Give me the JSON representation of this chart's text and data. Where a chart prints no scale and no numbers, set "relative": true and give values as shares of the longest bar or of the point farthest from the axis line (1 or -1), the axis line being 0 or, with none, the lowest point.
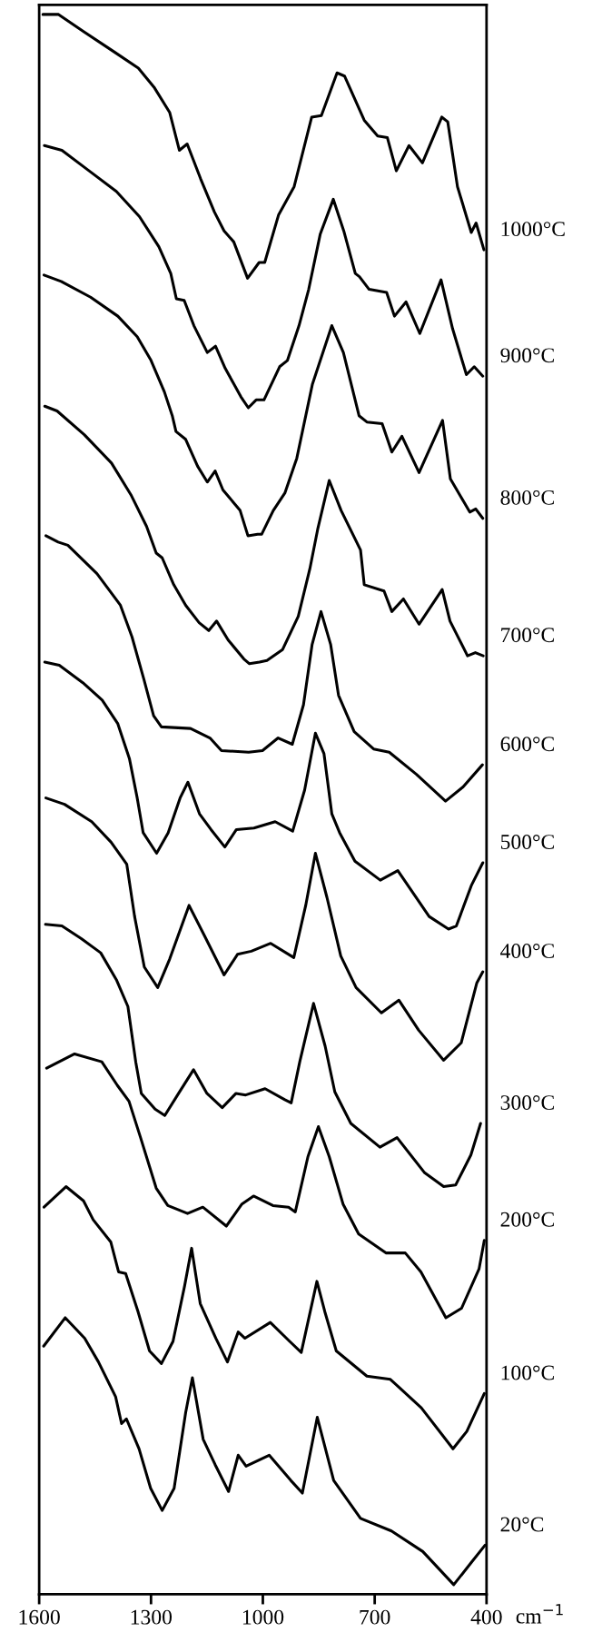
{
  "chart_data": {
    "type": "line",
    "relative": true,
    "xlabel": "cm$^{−1}$",
    "xlim": [
      1600,
      400
    ],
    "xticks": [
      1600,
      1300,
      1000,
      700,
      400
    ],
    "tick_labels": "x",
    "grid": false,
    "legend": false,
    "marker": "none",
    "line_style": "solid",
    "series": [
      {
        "name": "1000°C",
        "color": "#000000",
        "x": [
          1590,
          1548,
          1480,
          1397,
          1334,
          1292,
          1250,
          1224,
          1203,
          1167,
          1130,
          1104,
          1078,
          1041,
          1010,
          995,
          958,
          916,
          869,
          843,
          801,
          781,
          728,
          692,
          666,
          642,
          608,
          572,
          520,
          504,
          478,
          441,
          428,
          407
        ],
        "values": [
          1.0,
          1.0,
          0.989,
          0.976,
          0.966,
          0.954,
          0.938,
          0.914,
          0.918,
          0.896,
          0.875,
          0.863,
          0.856,
          0.833,
          0.843,
          0.843,
          0.873,
          0.891,
          0.935,
          0.936,
          0.963,
          0.961,
          0.933,
          0.923,
          0.922,
          0.901,
          0.917,
          0.906,
          0.935,
          0.932,
          0.891,
          0.862,
          0.868,
          0.851
        ]
      },
      {
        "name": "900°C",
        "color": "#000000",
        "x": [
          1586,
          1539,
          1466,
          1393,
          1331,
          1279,
          1247,
          1232,
          1211,
          1185,
          1149,
          1127,
          1101,
          1059,
          1039,
          1018,
          997,
          955,
          934,
          903,
          877,
          846,
          811,
          783,
          752,
          741,
          715,
          668,
          647,
          616,
          579,
          522,
          491,
          454,
          433,
          410
        ],
        "values": [
          0.917,
          0.914,
          0.901,
          0.888,
          0.872,
          0.853,
          0.836,
          0.82,
          0.819,
          0.803,
          0.786,
          0.79,
          0.776,
          0.758,
          0.751,
          0.756,
          0.756,
          0.777,
          0.781,
          0.803,
          0.826,
          0.861,
          0.883,
          0.863,
          0.836,
          0.834,
          0.826,
          0.824,
          0.809,
          0.818,
          0.798,
          0.832,
          0.801,
          0.772,
          0.777,
          0.771
        ]
      },
      {
        "name": "800°C",
        "color": "#000000",
        "x": [
          1587,
          1541,
          1462,
          1389,
          1337,
          1300,
          1264,
          1243,
          1233,
          1207,
          1175,
          1149,
          1128,
          1107,
          1061,
          1040,
          1014,
          1003,
          972,
          941,
          909,
          867,
          815,
          784,
          742,
          721,
          680,
          654,
          627,
          581,
          518,
          497,
          445,
          429,
          410
        ],
        "values": [
          0.835,
          0.831,
          0.821,
          0.809,
          0.796,
          0.781,
          0.761,
          0.746,
          0.736,
          0.731,
          0.714,
          0.704,
          0.711,
          0.699,
          0.686,
          0.67,
          0.671,
          0.671,
          0.686,
          0.697,
          0.719,
          0.766,
          0.803,
          0.786,
          0.746,
          0.742,
          0.741,
          0.723,
          0.733,
          0.71,
          0.743,
          0.706,
          0.685,
          0.687,
          0.681
        ]
      },
      {
        "name": "700°C",
        "color": "#000000",
        "x": [
          1585,
          1552,
          1479,
          1406,
          1354,
          1312,
          1286,
          1270,
          1239,
          1207,
          1171,
          1145,
          1124,
          1093,
          1051,
          1036,
          1009,
          989,
          947,
          905,
          874,
          853,
          822,
          790,
          738,
          728,
          675,
          654,
          623,
          581,
          519,
          498,
          451,
          430,
          409
        ],
        "values": [
          0.752,
          0.749,
          0.734,
          0.716,
          0.696,
          0.676,
          0.659,
          0.656,
          0.639,
          0.626,
          0.615,
          0.61,
          0.616,
          0.604,
          0.592,
          0.589,
          0.59,
          0.591,
          0.598,
          0.619,
          0.649,
          0.674,
          0.705,
          0.686,
          0.661,
          0.639,
          0.635,
          0.622,
          0.63,
          0.614,
          0.636,
          0.616,
          0.594,
          0.596,
          0.594
        ]
      },
      {
        "name": "600°C",
        "color": "#000000",
        "x": [
          1582,
          1549,
          1523,
          1445,
          1382,
          1351,
          1319,
          1293,
          1272,
          1194,
          1142,
          1111,
          1038,
          1001,
          959,
          921,
          891,
          868,
          844,
          818,
          797,
          755,
          703,
          661,
          588,
          510,
          463,
          411
        ],
        "values": [
          0.67,
          0.666,
          0.664,
          0.646,
          0.626,
          0.606,
          0.579,
          0.556,
          0.549,
          0.548,
          0.542,
          0.534,
          0.533,
          0.534,
          0.542,
          0.538,
          0.563,
          0.601,
          0.622,
          0.601,
          0.569,
          0.546,
          0.535,
          0.533,
          0.519,
          0.502,
          0.511,
          0.525
        ]
      },
      {
        "name": "500°C",
        "color": "#000000",
        "x": [
          1585,
          1546,
          1483,
          1431,
          1389,
          1358,
          1337,
          1321,
          1285,
          1254,
          1222,
          1201,
          1170,
          1139,
          1102,
          1071,
          1024,
          967,
          920,
          888,
          859,
          836,
          815,
          794,
          753,
          685,
          638,
          554,
          502,
          481,
          440,
          410
        ],
        "values": [
          0.59,
          0.588,
          0.577,
          0.566,
          0.551,
          0.529,
          0.504,
          0.482,
          0.469,
          0.482,
          0.504,
          0.514,
          0.494,
          0.484,
          0.473,
          0.484,
          0.485,
          0.489,
          0.483,
          0.509,
          0.545,
          0.532,
          0.494,
          0.482,
          0.464,
          0.452,
          0.458,
          0.429,
          0.421,
          0.423,
          0.449,
          0.463
        ]
      },
      {
        "name": "400°C",
        "color": "#000000",
        "x": [
          1582,
          1532,
          1459,
          1407,
          1365,
          1344,
          1318,
          1282,
          1250,
          1198,
          1157,
          1104,
          1068,
          1031,
          979,
          917,
          885,
          859,
          828,
          791,
          750,
          682,
          635,
          582,
          515,
          468,
          426,
          410
        ],
        "values": [
          0.504,
          0.5,
          0.489,
          0.476,
          0.462,
          0.429,
          0.397,
          0.384,
          0.402,
          0.436,
          0.417,
          0.392,
          0.405,
          0.407,
          0.412,
          0.403,
          0.436,
          0.469,
          0.441,
          0.404,
          0.384,
          0.368,
          0.376,
          0.357,
          0.338,
          0.349,
          0.387,
          0.394
        ]
      },
      {
        "name": "300°C",
        "color": "#000000",
        "x": [
          1583,
          1539,
          1487,
          1435,
          1393,
          1362,
          1341,
          1326,
          1289,
          1263,
          1226,
          1186,
          1150,
          1109,
          1072,
          1046,
          994,
          941,
          924,
          901,
          864,
          833,
          807,
          764,
          686,
          640,
          567,
          515,
          483,
          442,
          416
        ],
        "values": [
          0.424,
          0.423,
          0.415,
          0.406,
          0.389,
          0.372,
          0.337,
          0.317,
          0.307,
          0.303,
          0.317,
          0.332,
          0.317,
          0.308,
          0.317,
          0.316,
          0.32,
          0.313,
          0.311,
          0.337,
          0.374,
          0.347,
          0.318,
          0.298,
          0.283,
          0.289,
          0.267,
          0.258,
          0.259,
          0.278,
          0.298
        ]
      },
      {
        "name": "200°C",
        "color": "#000000",
        "x": [
          1580,
          1505,
          1432,
          1390,
          1359,
          1328,
          1286,
          1255,
          1202,
          1161,
          1098,
          1056,
          1025,
          973,
          931,
          913,
          879,
          851,
          822,
          785,
          743,
          670,
          618,
          576,
          509,
          467,
          420,
          406
        ],
        "values": [
          0.333,
          0.342,
          0.337,
          0.322,
          0.312,
          0.289,
          0.257,
          0.246,
          0.241,
          0.245,
          0.233,
          0.247,
          0.252,
          0.246,
          0.245,
          0.242,
          0.277,
          0.296,
          0.277,
          0.247,
          0.228,
          0.216,
          0.216,
          0.204,
          0.175,
          0.181,
          0.206,
          0.224
        ]
      },
      {
        "name": "100°C",
        "color": "#000000",
        "x": [
          1587,
          1528,
          1481,
          1455,
          1408,
          1387,
          1368,
          1335,
          1304,
          1272,
          1241,
          1210,
          1191,
          1168,
          1126,
          1095,
          1066,
          1048,
          980,
          928,
          897,
          855,
          834,
          803,
          721,
          658,
          575,
          490,
          453,
          406
        ],
        "values": [
          0.245,
          0.258,
          0.249,
          0.237,
          0.223,
          0.204,
          0.203,
          0.179,
          0.154,
          0.146,
          0.16,
          0.195,
          0.219,
          0.184,
          0.162,
          0.147,
          0.166,
          0.162,
          0.172,
          0.16,
          0.153,
          0.198,
          0.179,
          0.154,
          0.138,
          0.136,
          0.118,
          0.092,
          0.103,
          0.127
        ]
      },
      {
        "name": "20°C",
        "color": "#000000",
        "x": [
          1588,
          1530,
          1478,
          1441,
          1395,
          1379,
          1366,
          1332,
          1301,
          1270,
          1238,
          1207,
          1189,
          1160,
          1128,
          1092,
          1066,
          1045,
          983,
          925,
          894,
          854,
          810,
          738,
          655,
          571,
          488,
          441,
          404
        ],
        "values": [
          0.157,
          0.175,
          0.162,
          0.147,
          0.125,
          0.108,
          0.111,
          0.092,
          0.067,
          0.053,
          0.067,
          0.115,
          0.137,
          0.098,
          0.082,
          0.065,
          0.088,
          0.081,
          0.088,
          0.072,
          0.064,
          0.112,
          0.072,
          0.048,
          0.04,
          0.027,
          0.006,
          0.02,
          0.031
        ]
      }
    ]
  }
}
